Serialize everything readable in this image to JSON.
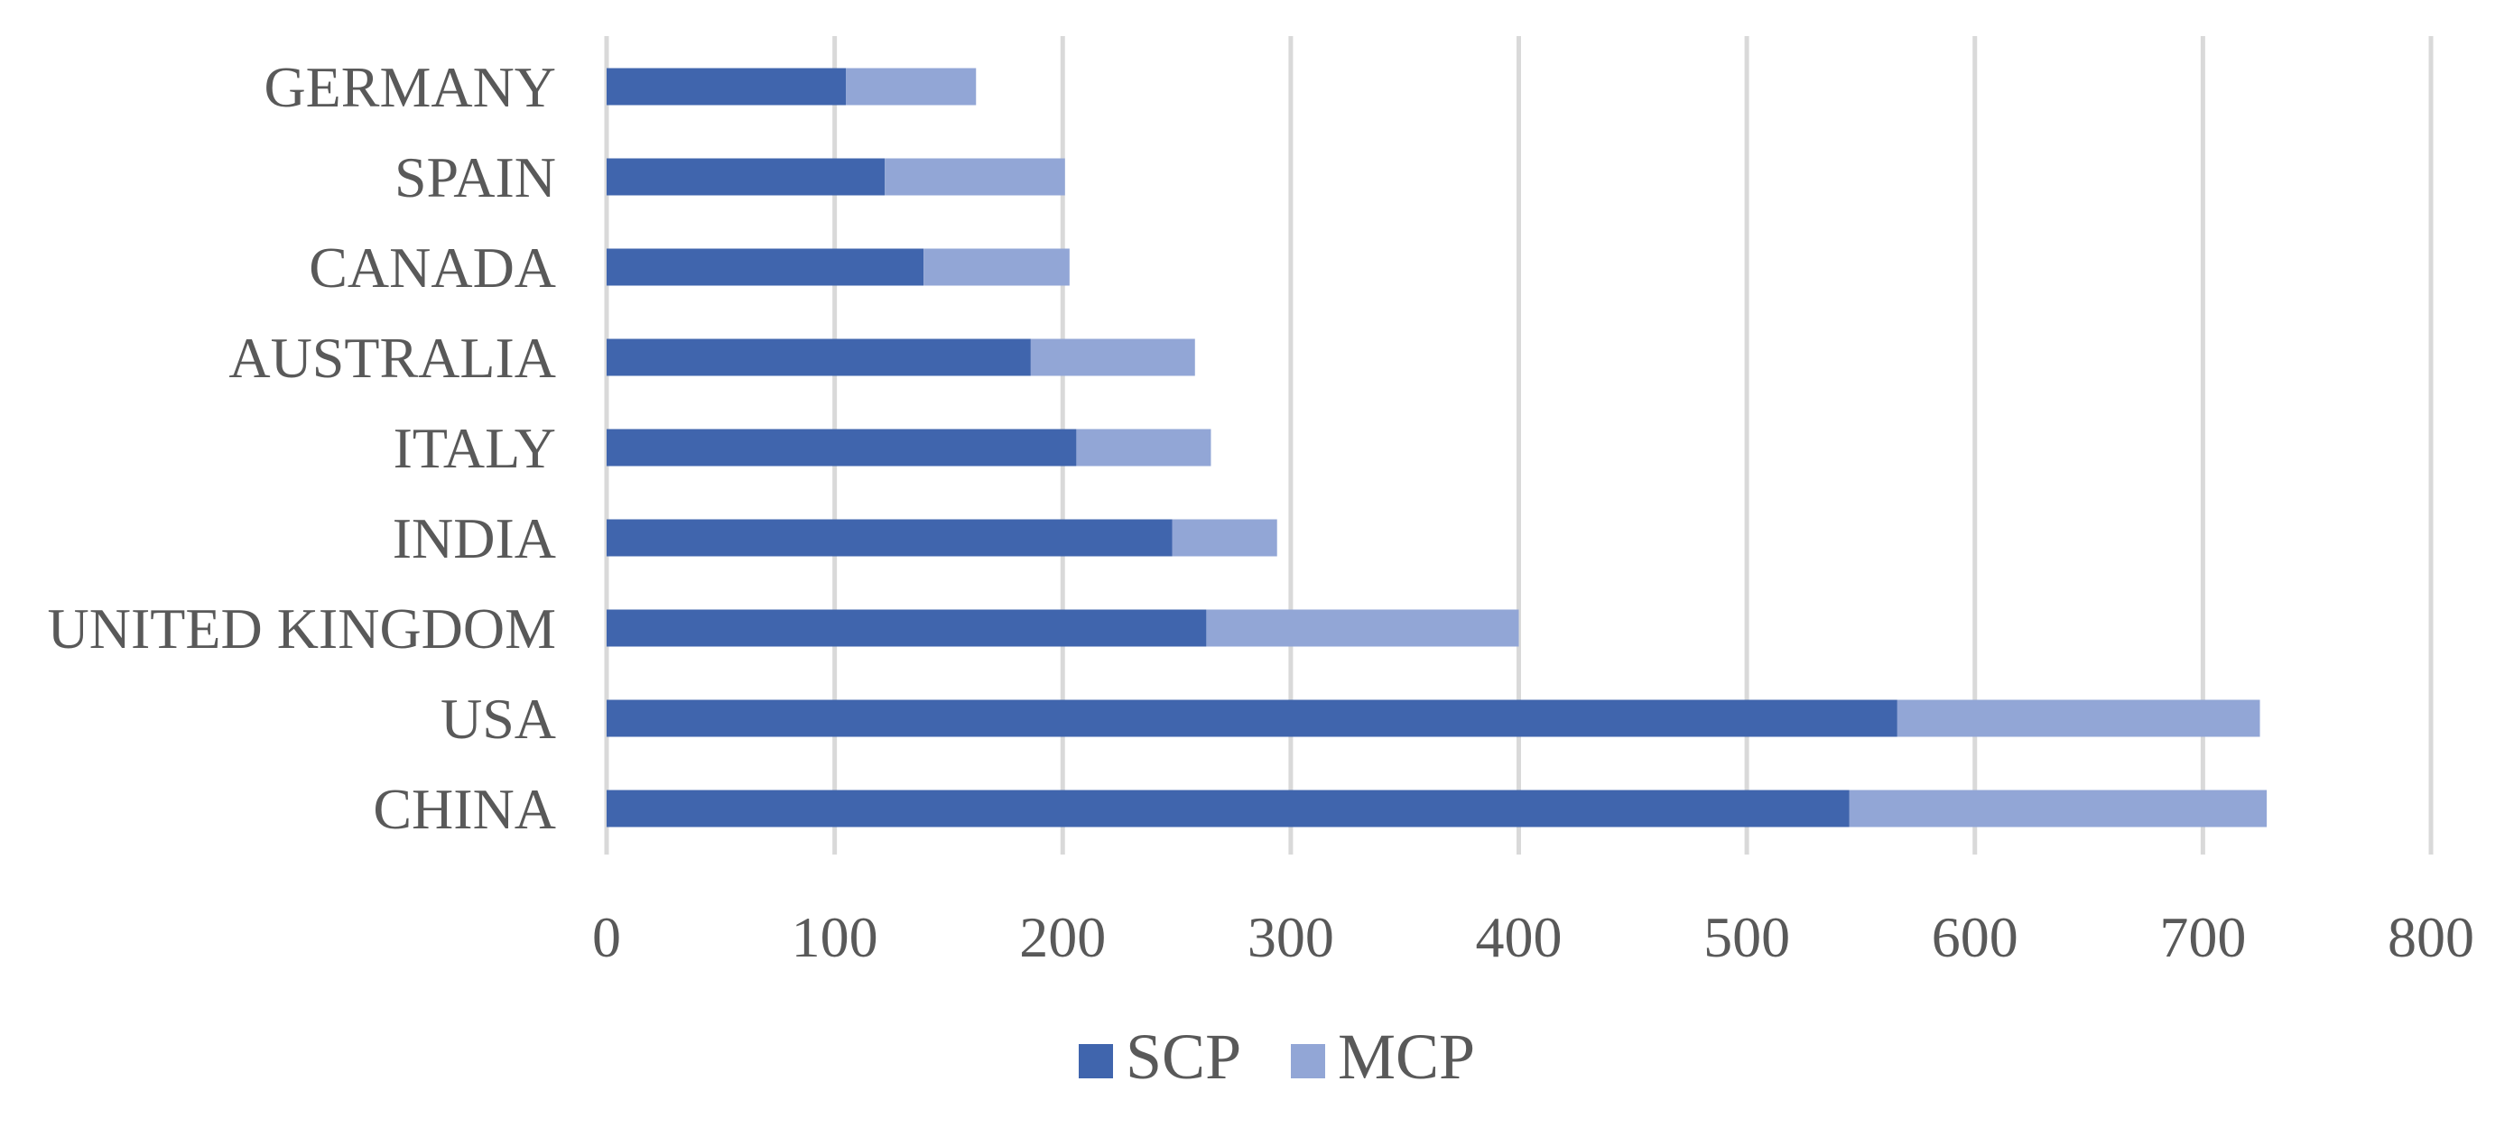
{
  "chart_data": {
    "type": "bar",
    "orientation": "horizontal",
    "stacked": true,
    "categories": [
      "GERMANY",
      "SPAIN",
      "CANADA",
      "AUSTRALIA",
      "ITALY",
      "INDIA",
      "UNITED KINGDOM",
      "USA",
      "CHINA"
    ],
    "series": [
      {
        "name": "SCP",
        "color": "#4065AD",
        "values": [
          105,
          122,
          139,
          186,
          206,
          248,
          263,
          566,
          545
        ]
      },
      {
        "name": "MCP",
        "color": "#92A6D6",
        "values": [
          57,
          79,
          64,
          72,
          59,
          46,
          137,
          159,
          183
        ]
      }
    ],
    "xlim": [
      0,
      800
    ],
    "xticks": [
      "0",
      "100",
      "200",
      "300",
      "400",
      "500",
      "600",
      "700",
      "800"
    ],
    "grid": "vertical",
    "gridColor": "#D9D9D9",
    "legend": "bottom-center",
    "title": "",
    "xlabel": "",
    "ylabel": ""
  }
}
